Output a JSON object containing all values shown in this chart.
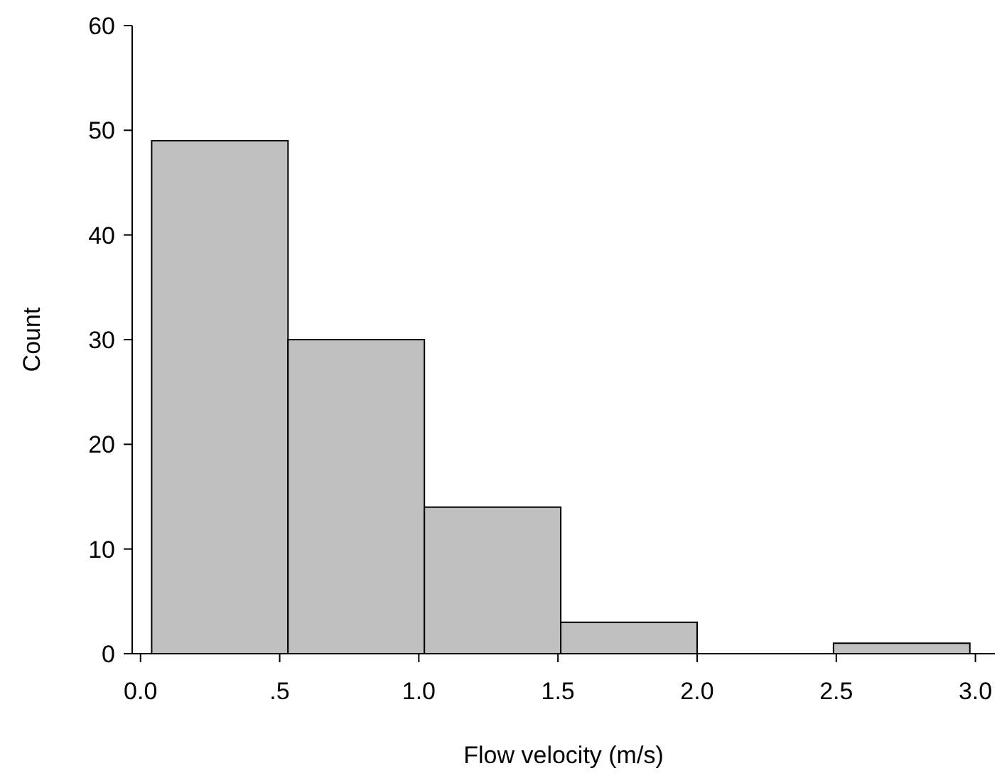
{
  "chart_data": {
    "type": "histogram",
    "xlabel": "Flow velocity (m/s)",
    "ylabel": "Count",
    "bins": [
      0.04,
      0.53,
      1.02,
      1.51,
      2.0,
      2.49,
      2.98
    ],
    "values": [
      49,
      30,
      14,
      3,
      0,
      1
    ],
    "color": "#c0c0c0",
    "xlim": [
      -0.03,
      3.07
    ],
    "ylim": [
      0,
      60
    ],
    "xticks": [
      {
        "value": 0,
        "label": "0.0"
      },
      {
        "value": 0.5,
        "label": ".5"
      },
      {
        "value": 1,
        "label": "1.0"
      },
      {
        "value": 1.5,
        "label": "1.5"
      },
      {
        "value": 2,
        "label": "2.0"
      },
      {
        "value": 2.5,
        "label": "2.5"
      },
      {
        "value": 3,
        "label": "3.0"
      }
    ],
    "yticks": [
      0,
      10,
      20,
      30,
      40,
      50,
      60
    ],
    "grid": false
  }
}
